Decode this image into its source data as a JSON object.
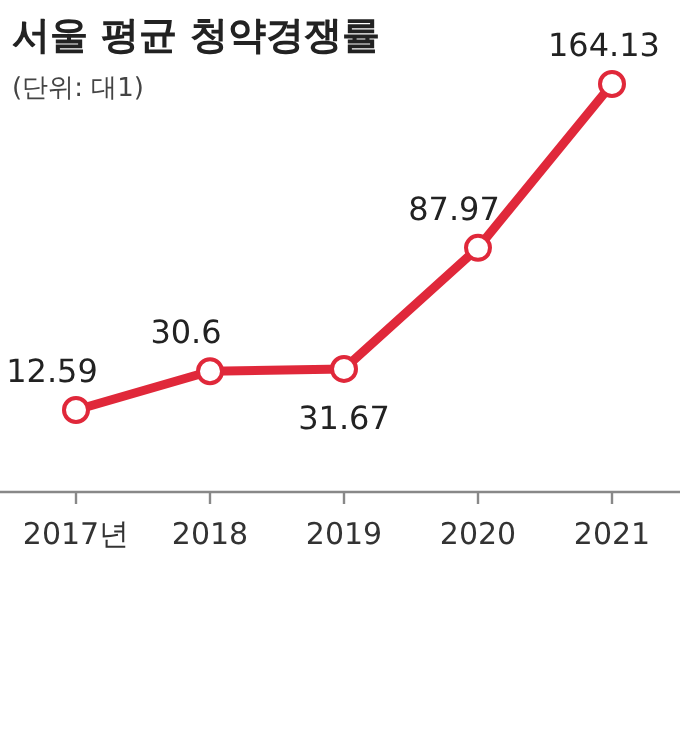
{
  "chart_data": {
    "type": "line",
    "title": "서울 평균 청약경쟁률",
    "subtitle": "(단위: 대1)",
    "categories": [
      "2017년",
      "2018",
      "2019",
      "2020",
      "2021"
    ],
    "series": [
      {
        "color": "#e0283a",
        "values": [
          12.59,
          30.6,
          31.67,
          87.97,
          164.13
        ]
      }
    ],
    "data_labels": true,
    "marker": "circle"
  }
}
